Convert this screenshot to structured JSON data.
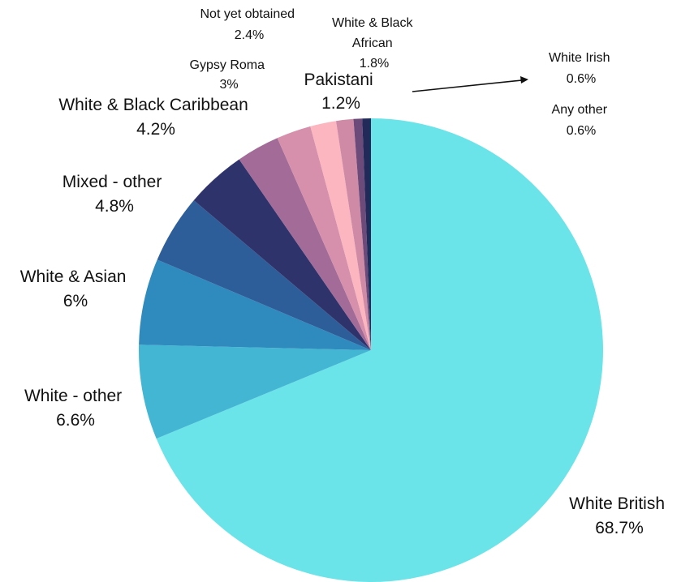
{
  "chart_data": {
    "type": "pie",
    "title": "",
    "start_angle_deg": 0,
    "direction": "clockwise",
    "slices": [
      {
        "label": "White British",
        "value": 68.7,
        "display": "68.7%",
        "color": "#6ae4e8"
      },
      {
        "label": "White - other",
        "value": 6.6,
        "display": "6.6%",
        "color": "#43b6d4"
      },
      {
        "label": "White & Asian",
        "value": 6,
        "display": "6%",
        "color": "#2f8bbd"
      },
      {
        "label": "Mixed - other",
        "value": 4.8,
        "display": "4.8%",
        "color": "#2e5e9a"
      },
      {
        "label": "White & Black Caribbean",
        "value": 4.2,
        "display": "4.2%",
        "color": "#2f336b"
      },
      {
        "label": "Gypsy Roma",
        "value": 3,
        "display": "3%",
        "color": "#a36b97"
      },
      {
        "label": "Not yet obtained",
        "value": 2.4,
        "display": "2.4%",
        "color": "#d690ab"
      },
      {
        "label": "White & Black African",
        "value": 1.8,
        "display": "1.8%",
        "color": "#fbb6c0"
      },
      {
        "label": "Pakistani",
        "value": 1.2,
        "display": "1.2%",
        "color": "#cf8aa5"
      },
      {
        "label": "White Irish",
        "value": 0.6,
        "display": "0.6%",
        "color": "#6c4a7a"
      },
      {
        "label": "Any other",
        "value": 0.6,
        "display": "0.6%",
        "color": "#222a5a"
      }
    ]
  }
}
